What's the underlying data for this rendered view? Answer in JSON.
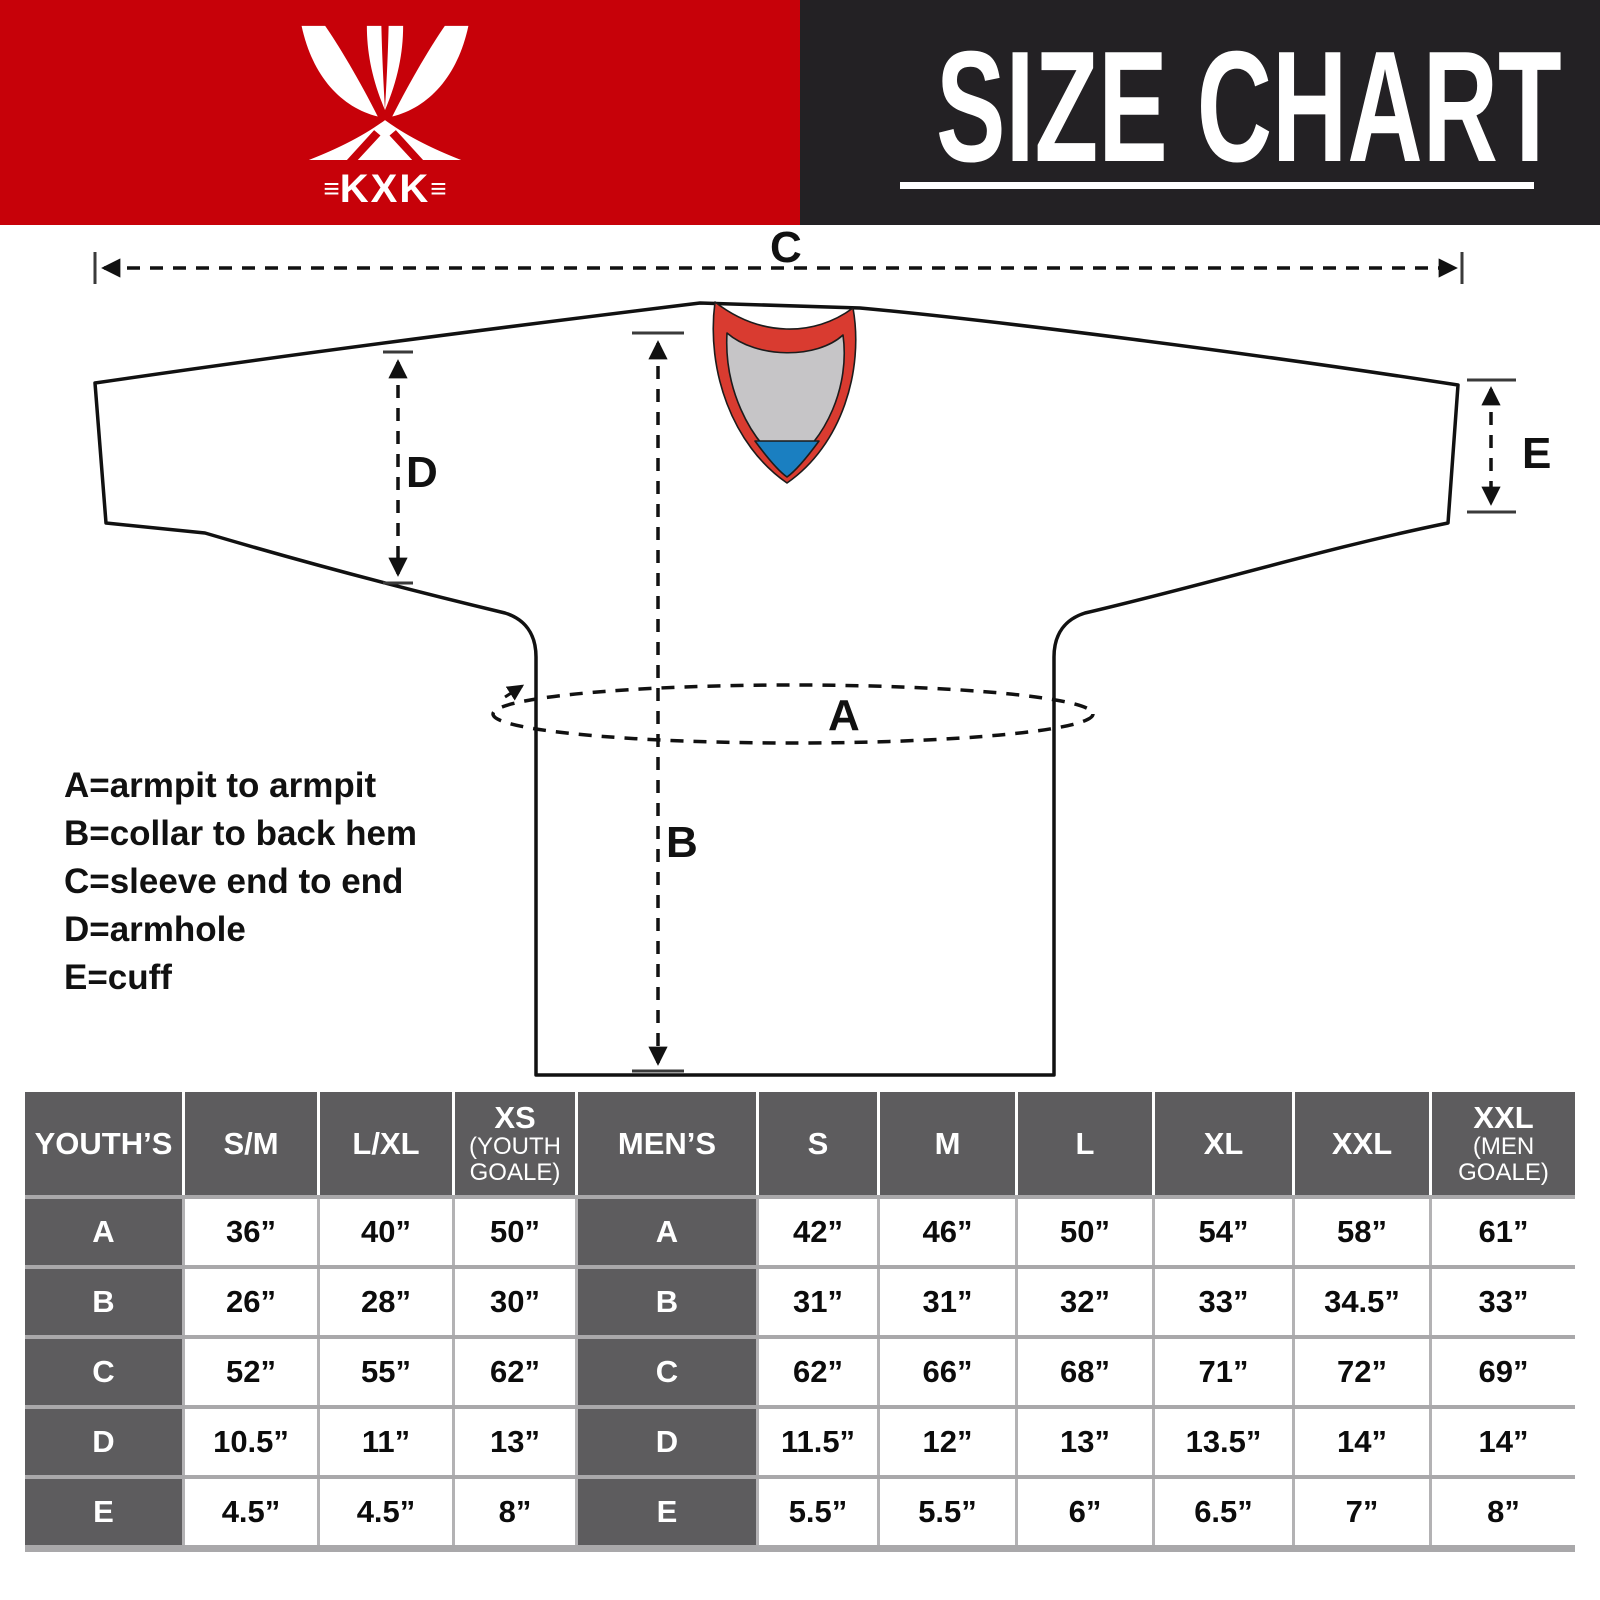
{
  "header": {
    "brand": "KXK",
    "logo_mark": "≡",
    "title": "SIZE CHART"
  },
  "diagram": {
    "labels": {
      "a": "A",
      "b": "B",
      "c": "C",
      "d": "D",
      "e": "E"
    },
    "legend": [
      "A=armpit to armpit",
      "B=collar to back hem",
      "C=sleeve end to end",
      "D=armhole",
      "E=cuff"
    ]
  },
  "size_table": {
    "header_cells": [
      {
        "text": "YOUTH’S"
      },
      {
        "text": "S/M"
      },
      {
        "text": "L/XL"
      },
      {
        "text": "XS",
        "sub": "(YOUTH GOALE)"
      },
      {
        "text": "MEN’S"
      },
      {
        "text": "S"
      },
      {
        "text": "M"
      },
      {
        "text": "L"
      },
      {
        "text": "XL"
      },
      {
        "text": "XXL"
      },
      {
        "text": "XXL",
        "sub": "(MEN GOALE)"
      }
    ]
  },
  "chart_data": [
    {
      "type": "table",
      "title": "YOUTH’S",
      "columns": [
        "S/M",
        "L/XL",
        "XS (YOUTH GOALE)"
      ],
      "row_labels": [
        "A",
        "B",
        "C",
        "D",
        "E"
      ],
      "rows": [
        [
          "36”",
          "40”",
          "50”"
        ],
        [
          "26”",
          "28”",
          "30”"
        ],
        [
          "52”",
          "55”",
          "62”"
        ],
        [
          "10.5”",
          "11”",
          "13”"
        ],
        [
          "4.5”",
          "4.5”",
          "8”"
        ]
      ]
    },
    {
      "type": "table",
      "title": "MEN’S",
      "columns": [
        "S",
        "M",
        "L",
        "XL",
        "XXL",
        "XXL (MEN GOALE)"
      ],
      "row_labels": [
        "A",
        "B",
        "C",
        "D",
        "E"
      ],
      "rows": [
        [
          "42”",
          "46”",
          "50”",
          "54”",
          "58”",
          "61”"
        ],
        [
          "31”",
          "31”",
          "32”",
          "33”",
          "34.5”",
          "33”"
        ],
        [
          "62”",
          "66”",
          "68”",
          "71”",
          "72”",
          "69”"
        ],
        [
          "11.5”",
          "12”",
          "13”",
          "13.5”",
          "14”",
          "14”"
        ],
        [
          "5.5”",
          "5.5”",
          "6”",
          "6.5”",
          "7”",
          "8”"
        ]
      ]
    }
  ],
  "colors": {
    "header_red": "#c70109",
    "header_dark": "#232124",
    "table_header_gray": "#5d5c5e",
    "table_line_gray": "#a9a8aa",
    "collar_red": "#d93b30",
    "collar_gray": "#c6c5c7",
    "collar_blue": "#1a7fc1",
    "outline_black": "#111111"
  }
}
